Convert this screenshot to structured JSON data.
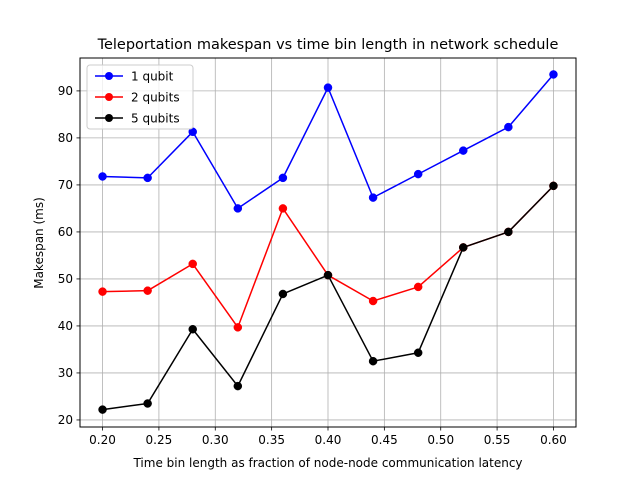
{
  "chart_data": {
    "type": "line",
    "title": "Teleportation makespan vs time bin length in network schedule",
    "xlabel": "Time bin length as fraction of node-node communication latency",
    "ylabel": "Makespan (ms)",
    "x": [
      0.2,
      0.24,
      0.28,
      0.32,
      0.36,
      0.4,
      0.44,
      0.48,
      0.52,
      0.56,
      0.6
    ],
    "x_ticks": [
      "0.20",
      "0.25",
      "0.30",
      "0.35",
      "0.40",
      "0.45",
      "0.50",
      "0.55",
      "0.60"
    ],
    "x_tick_values": [
      0.2,
      0.25,
      0.3,
      0.35,
      0.4,
      0.45,
      0.5,
      0.55,
      0.6
    ],
    "y_ticks": [
      "20",
      "30",
      "40",
      "50",
      "60",
      "70",
      "80",
      "90"
    ],
    "y_tick_values": [
      20,
      30,
      40,
      50,
      60,
      70,
      80,
      90
    ],
    "xlim": [
      0.18,
      0.62
    ],
    "ylim": [
      18.5,
      97.0
    ],
    "grid": true,
    "legend_position": "upper-left",
    "series": [
      {
        "name": "1 qubit",
        "color": "#0000ff",
        "values": [
          71.8,
          71.5,
          81.3,
          65.0,
          71.5,
          90.7,
          67.3,
          72.3,
          77.3,
          82.3,
          93.5
        ]
      },
      {
        "name": "2 qubits",
        "color": "#ff0000",
        "values": [
          47.3,
          47.5,
          53.2,
          39.7,
          65.0,
          50.8,
          45.3,
          48.3,
          56.7,
          60.0,
          69.8
        ]
      },
      {
        "name": "5 qubits",
        "color": "#000000",
        "values": [
          22.2,
          23.5,
          39.3,
          27.2,
          46.8,
          50.8,
          32.5,
          34.3,
          56.7,
          60.0,
          69.8
        ]
      }
    ]
  }
}
